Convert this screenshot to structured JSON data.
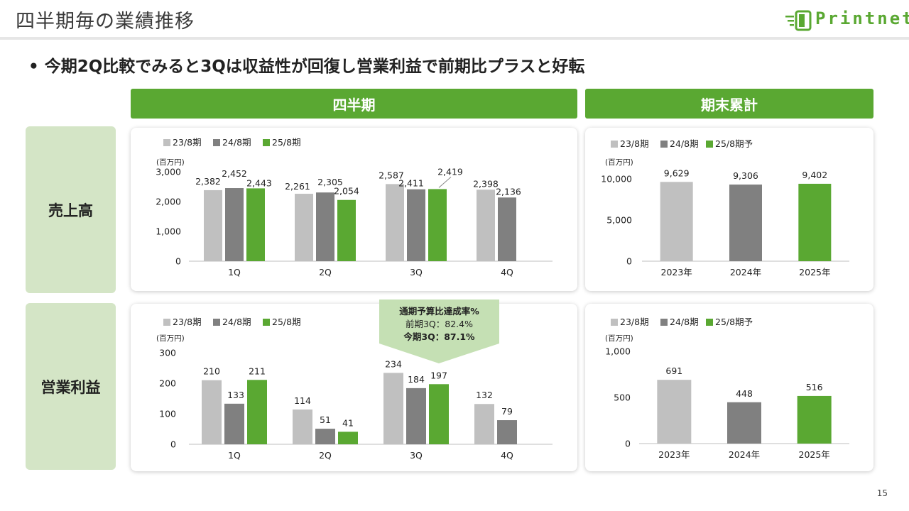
{
  "page": {
    "title": "四半期毎の業績推移",
    "headline": "• 今期2Q比較でみると3Qは収益性が回復し営業利益で前期比プラスと好転",
    "page_number": "15",
    "logo_text": "Printnet"
  },
  "headers": {
    "quarterly": "四半期",
    "cumulative": "期末累計"
  },
  "row_labels": {
    "sales": "売上高",
    "operating_profit": "営業利益"
  },
  "colors": {
    "gray_light": "#c0c0c0",
    "gray_dark": "#808080",
    "green": "#5aa832",
    "label_bg": "#d4e5c6"
  },
  "callout": {
    "line1": "通期予算比達成率%",
    "line2": "前期3Q：82.4%",
    "line3": "今期3Q：87.1%"
  },
  "chart_data": [
    {
      "id": "quarterly_sales",
      "type": "bar",
      "unit_label": "(百万円)",
      "categories": [
        "1Q",
        "2Q",
        "3Q",
        "4Q"
      ],
      "series": [
        {
          "name": "23/8期",
          "values": [
            2382,
            2261,
            2587,
            2398
          ],
          "labels": [
            "2,382",
            "2,261",
            "2,587",
            "2,398"
          ]
        },
        {
          "name": "24/8期",
          "values": [
            2452,
            2305,
            2411,
            2136
          ],
          "labels": [
            "2,452",
            "2,305",
            "2,411",
            "2,136"
          ]
        },
        {
          "name": "25/8期",
          "values": [
            2443,
            2054,
            2419,
            null
          ],
          "labels": [
            "2,443",
            "2,054",
            "2,419",
            ""
          ]
        }
      ],
      "ylim": [
        0,
        3000
      ],
      "yticks": [
        0,
        1000,
        2000,
        3000
      ],
      "ytick_labels": [
        "0",
        "1,000",
        "2,000",
        "3,000"
      ],
      "legend": "top-left"
    },
    {
      "id": "cumulative_sales",
      "type": "bar",
      "unit_label": "(百万円)",
      "categories": [
        "2023年",
        "2024年",
        "2025年"
      ],
      "legend_names": [
        "23/8期",
        "24/8期",
        "25/8期予"
      ],
      "values": [
        9629,
        9306,
        9402
      ],
      "labels": [
        "9,629",
        "9,306",
        "9,402"
      ],
      "ylim": [
        0,
        10000
      ],
      "yticks": [
        0,
        5000,
        10000
      ],
      "ytick_labels": [
        "0",
        "5,000",
        "10,000"
      ],
      "legend": "top-left"
    },
    {
      "id": "quarterly_operating_profit",
      "type": "bar",
      "unit_label": "(百万円)",
      "categories": [
        "1Q",
        "2Q",
        "3Q",
        "4Q"
      ],
      "series": [
        {
          "name": "23/8期",
          "values": [
            210,
            114,
            234,
            132
          ],
          "labels": [
            "210",
            "114",
            "234",
            "132"
          ]
        },
        {
          "name": "24/8期",
          "values": [
            133,
            51,
            184,
            79
          ],
          "labels": [
            "133",
            "51",
            "184",
            "79"
          ]
        },
        {
          "name": "25/8期",
          "values": [
            211,
            41,
            197,
            null
          ],
          "labels": [
            "211",
            "41",
            "197",
            ""
          ]
        }
      ],
      "ylim": [
        0,
        300
      ],
      "yticks": [
        0,
        100,
        200,
        300
      ],
      "ytick_labels": [
        "0",
        "100",
        "200",
        "300"
      ],
      "legend": "top-left"
    },
    {
      "id": "cumulative_operating_profit",
      "type": "bar",
      "unit_label": "(百万円)",
      "categories": [
        "2023年",
        "2024年",
        "2025年"
      ],
      "legend_names": [
        "23/8期",
        "24/8期",
        "25/8期予"
      ],
      "values": [
        691,
        448,
        516
      ],
      "labels": [
        "691",
        "448",
        "516"
      ],
      "ylim": [
        0,
        1000
      ],
      "yticks": [
        0,
        500,
        1000
      ],
      "ytick_labels": [
        "0",
        "500",
        "1,000"
      ],
      "legend": "top-left"
    }
  ]
}
